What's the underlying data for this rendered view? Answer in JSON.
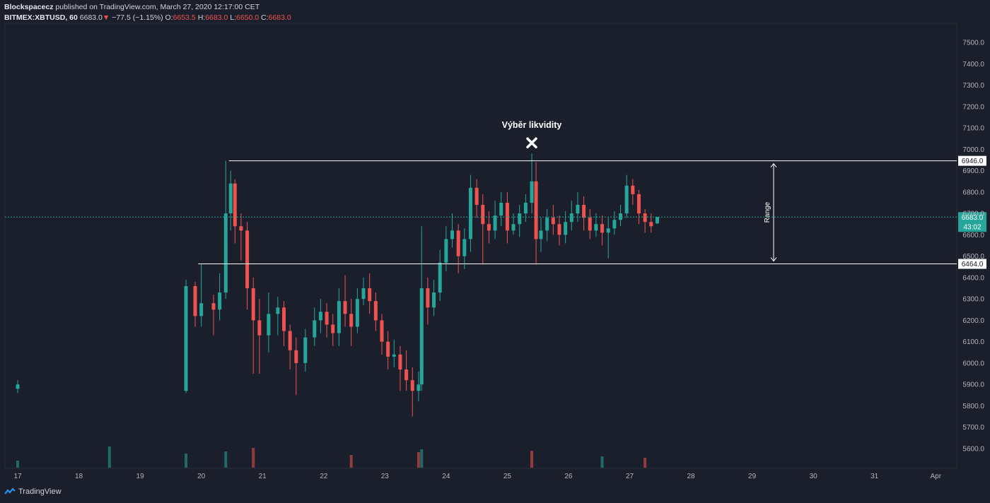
{
  "header": {
    "publisher": "Blockspacecz",
    "published_text": "published on TradingView.com, March 27, 2020 12:17:00 CET",
    "symbol": "BITMEX:XBTUSD, 60",
    "last": "6683.0",
    "change": "−77.5 (−1.15%)",
    "open_label": "O:",
    "open": "6653.5",
    "high_label": "H:",
    "high": "6683.0",
    "low_label": "L:",
    "low": "6650.0",
    "close_label": "C:",
    "close": "6683.0"
  },
  "footer": {
    "brand": "TradingView"
  },
  "colors": {
    "up": "#26a69a",
    "down": "#ef5350",
    "bg": "#1b1f2b",
    "line": "#ffffff",
    "current": "#26a69a"
  },
  "chart_data": {
    "type": "candlestick",
    "title": "",
    "xlabel": "",
    "ylabel": "",
    "ylim": [
      5550,
      7580
    ],
    "grid": false,
    "y_ticks": [
      "5600.0",
      "5700.0",
      "5800.0",
      "5900.0",
      "6000.0",
      "6100.0",
      "6200.0",
      "6300.0",
      "6400.0",
      "6500.0",
      "6600.0",
      "6700.0",
      "6800.0",
      "6900.0",
      "7000.0",
      "7100.0",
      "7200.0",
      "7300.0",
      "7400.0",
      "7500.0"
    ],
    "x_ticks": [
      "17",
      "18",
      "19",
      "20",
      "21",
      "22",
      "23",
      "24",
      "25",
      "26",
      "27",
      "28",
      "29",
      "30",
      "31",
      "Apr"
    ],
    "annotations": {
      "title": "Výběr likvidity",
      "range_label": "Range",
      "resistance": 6946.0,
      "resistance_label": "6946.0",
      "support": 6464.0,
      "support_label": "6464.0",
      "current": 6683.0,
      "current_label": "6683.0",
      "countdown": "43:02",
      "marker_price": 7030
    },
    "candles": [
      {
        "t": 17.0,
        "o": 5880,
        "c": 5900,
        "h": 5920,
        "l": 5860
      },
      {
        "t": 19.75,
        "o": 5870,
        "c": 6360,
        "h": 6390,
        "l": 5860
      },
      {
        "t": 19.9,
        "o": 6360,
        "c": 6220,
        "h": 6380,
        "l": 6170
      },
      {
        "t": 20.0,
        "o": 6220,
        "c": 6280,
        "h": 6464,
        "l": 6170
      },
      {
        "t": 20.2,
        "o": 6280,
        "c": 6250,
        "h": 6320,
        "l": 6130
      },
      {
        "t": 20.3,
        "o": 6250,
        "c": 6330,
        "h": 6420,
        "l": 6200
      },
      {
        "t": 20.4,
        "o": 6330,
        "c": 6700,
        "h": 6946,
        "l": 6300
      },
      {
        "t": 20.48,
        "o": 6700,
        "c": 6840,
        "h": 6900,
        "l": 6620
      },
      {
        "t": 20.55,
        "o": 6840,
        "c": 6640,
        "h": 6860,
        "l": 6560
      },
      {
        "t": 20.65,
        "o": 6640,
        "c": 6620,
        "h": 6700,
        "l": 6480
      },
      {
        "t": 20.75,
        "o": 6620,
        "c": 6350,
        "h": 6660,
        "l": 6250
      },
      {
        "t": 20.85,
        "o": 6350,
        "c": 6200,
        "h": 6400,
        "l": 5950
      },
      {
        "t": 20.95,
        "o": 6200,
        "c": 6130,
        "h": 6300,
        "l": 5950
      },
      {
        "t": 21.1,
        "o": 6130,
        "c": 6230,
        "h": 6330,
        "l": 6050
      },
      {
        "t": 21.25,
        "o": 6230,
        "c": 6260,
        "h": 6310,
        "l": 6130
      },
      {
        "t": 21.35,
        "o": 6260,
        "c": 6150,
        "h": 6290,
        "l": 6080
      },
      {
        "t": 21.45,
        "o": 6150,
        "c": 6060,
        "h": 6180,
        "l": 5970
      },
      {
        "t": 21.55,
        "o": 6060,
        "c": 6000,
        "h": 6120,
        "l": 5850
      },
      {
        "t": 21.7,
        "o": 6000,
        "c": 6120,
        "h": 6160,
        "l": 5960
      },
      {
        "t": 21.85,
        "o": 6120,
        "c": 6200,
        "h": 6260,
        "l": 6080
      },
      {
        "t": 21.95,
        "o": 6200,
        "c": 6240,
        "h": 6300,
        "l": 6140
      },
      {
        "t": 22.05,
        "o": 6240,
        "c": 6180,
        "h": 6280,
        "l": 6120
      },
      {
        "t": 22.15,
        "o": 6180,
        "c": 6140,
        "h": 6230,
        "l": 6080
      },
      {
        "t": 22.25,
        "o": 6140,
        "c": 6290,
        "h": 6350,
        "l": 6080
      },
      {
        "t": 22.35,
        "o": 6290,
        "c": 6230,
        "h": 6410,
        "l": 6170
      },
      {
        "t": 22.45,
        "o": 6230,
        "c": 6170,
        "h": 6300,
        "l": 6080
      },
      {
        "t": 22.55,
        "o": 6170,
        "c": 6300,
        "h": 6350,
        "l": 6140
      },
      {
        "t": 22.65,
        "o": 6300,
        "c": 6350,
        "h": 6400,
        "l": 6270
      },
      {
        "t": 22.75,
        "o": 6350,
        "c": 6290,
        "h": 6420,
        "l": 6230
      },
      {
        "t": 22.85,
        "o": 6290,
        "c": 6200,
        "h": 6330,
        "l": 6150
      },
      {
        "t": 22.95,
        "o": 6200,
        "c": 6100,
        "h": 6230,
        "l": 6040
      },
      {
        "t": 23.05,
        "o": 6100,
        "c": 6030,
        "h": 6150,
        "l": 5970
      },
      {
        "t": 23.15,
        "o": 6030,
        "c": 6040,
        "h": 6110,
        "l": 5980
      },
      {
        "t": 23.25,
        "o": 6040,
        "c": 5970,
        "h": 6080,
        "l": 5870
      },
      {
        "t": 23.35,
        "o": 5970,
        "c": 5920,
        "h": 6060,
        "l": 5870
      },
      {
        "t": 23.45,
        "o": 5920,
        "c": 5870,
        "h": 5980,
        "l": 5750
      },
      {
        "t": 23.55,
        "o": 5870,
        "c": 5900,
        "h": 5960,
        "l": 5820
      },
      {
        "t": 23.6,
        "o": 5900,
        "c": 6350,
        "h": 6640,
        "l": 5870
      },
      {
        "t": 23.7,
        "o": 6350,
        "c": 6260,
        "h": 6400,
        "l": 6180
      },
      {
        "t": 23.8,
        "o": 6260,
        "c": 6330,
        "h": 6390,
        "l": 6220
      },
      {
        "t": 23.9,
        "o": 6330,
        "c": 6470,
        "h": 6530,
        "l": 6290
      },
      {
        "t": 24.0,
        "o": 6470,
        "c": 6580,
        "h": 6640,
        "l": 6430
      },
      {
        "t": 24.1,
        "o": 6580,
        "c": 6620,
        "h": 6700,
        "l": 6540
      },
      {
        "t": 24.2,
        "o": 6620,
        "c": 6500,
        "h": 6650,
        "l": 6420
      },
      {
        "t": 24.3,
        "o": 6500,
        "c": 6580,
        "h": 6630,
        "l": 6440
      },
      {
        "t": 24.4,
        "o": 6580,
        "c": 6820,
        "h": 6880,
        "l": 6520
      },
      {
        "t": 24.5,
        "o": 6820,
        "c": 6740,
        "h": 6860,
        "l": 6680
      },
      {
        "t": 24.6,
        "o": 6740,
        "c": 6650,
        "h": 6790,
        "l": 6460
      },
      {
        "t": 24.7,
        "o": 6650,
        "c": 6620,
        "h": 6710,
        "l": 6560
      },
      {
        "t": 24.8,
        "o": 6620,
        "c": 6690,
        "h": 6760,
        "l": 6580
      },
      {
        "t": 24.9,
        "o": 6690,
        "c": 6750,
        "h": 6800,
        "l": 6640
      },
      {
        "t": 25.0,
        "o": 6750,
        "c": 6620,
        "h": 6800,
        "l": 6560
      },
      {
        "t": 25.1,
        "o": 6620,
        "c": 6650,
        "h": 6700,
        "l": 6600
      },
      {
        "t": 25.2,
        "o": 6650,
        "c": 6700,
        "h": 6740,
        "l": 6590
      },
      {
        "t": 25.3,
        "o": 6700,
        "c": 6750,
        "h": 6790,
        "l": 6660
      },
      {
        "t": 25.4,
        "o": 6750,
        "c": 6850,
        "h": 6980,
        "l": 6700
      },
      {
        "t": 25.47,
        "o": 6850,
        "c": 6580,
        "h": 6940,
        "l": 6460
      },
      {
        "t": 25.55,
        "o": 6580,
        "c": 6620,
        "h": 6680,
        "l": 6520
      },
      {
        "t": 25.65,
        "o": 6620,
        "c": 6680,
        "h": 6720,
        "l": 6570
      },
      {
        "t": 25.75,
        "o": 6680,
        "c": 6650,
        "h": 6740,
        "l": 6600
      },
      {
        "t": 25.85,
        "o": 6650,
        "c": 6600,
        "h": 6690,
        "l": 6550
      },
      {
        "t": 25.95,
        "o": 6600,
        "c": 6660,
        "h": 6710,
        "l": 6560
      },
      {
        "t": 26.05,
        "o": 6660,
        "c": 6700,
        "h": 6760,
        "l": 6620
      },
      {
        "t": 26.15,
        "o": 6700,
        "c": 6740,
        "h": 6800,
        "l": 6660
      },
      {
        "t": 26.25,
        "o": 6740,
        "c": 6680,
        "h": 6780,
        "l": 6620
      },
      {
        "t": 26.35,
        "o": 6680,
        "c": 6620,
        "h": 6720,
        "l": 6580
      },
      {
        "t": 26.45,
        "o": 6620,
        "c": 6650,
        "h": 6700,
        "l": 6590
      },
      {
        "t": 26.55,
        "o": 6650,
        "c": 6610,
        "h": 6690,
        "l": 6550
      },
      {
        "t": 26.65,
        "o": 6610,
        "c": 6630,
        "h": 6680,
        "l": 6490
      },
      {
        "t": 26.75,
        "o": 6630,
        "c": 6670,
        "h": 6710,
        "l": 6600
      },
      {
        "t": 26.85,
        "o": 6670,
        "c": 6700,
        "h": 6740,
        "l": 6640
      },
      {
        "t": 26.95,
        "o": 6700,
        "c": 6830,
        "h": 6880,
        "l": 6680
      },
      {
        "t": 27.05,
        "o": 6830,
        "c": 6790,
        "h": 6860,
        "l": 6740
      },
      {
        "t": 27.15,
        "o": 6790,
        "c": 6700,
        "h": 6810,
        "l": 6650
      },
      {
        "t": 27.25,
        "o": 6700,
        "c": 6660,
        "h": 6720,
        "l": 6610
      },
      {
        "t": 27.35,
        "o": 6660,
        "c": 6640,
        "h": 6700,
        "l": 6610
      },
      {
        "t": 27.45,
        "o": 6653.5,
        "c": 6683,
        "h": 6683,
        "l": 6650
      }
    ],
    "volume": {
      "max_level": 3.0,
      "bars": [
        {
          "t": 17.0,
          "v": 1.0,
          "up": true
        },
        {
          "t": 18.5,
          "v": 3.0,
          "up": true
        },
        {
          "t": 19.75,
          "v": 2.0,
          "up": true
        },
        {
          "t": 20.4,
          "v": 2.3,
          "up": true
        },
        {
          "t": 20.85,
          "v": 2.8,
          "up": false
        },
        {
          "t": 22.45,
          "v": 1.8,
          "up": false
        },
        {
          "t": 23.55,
          "v": 2.2,
          "up": false
        },
        {
          "t": 23.6,
          "v": 2.6,
          "up": true
        },
        {
          "t": 25.4,
          "v": 2.4,
          "up": false
        },
        {
          "t": 26.55,
          "v": 1.6,
          "up": true
        },
        {
          "t": 27.25,
          "v": 1.4,
          "up": false
        }
      ]
    }
  }
}
